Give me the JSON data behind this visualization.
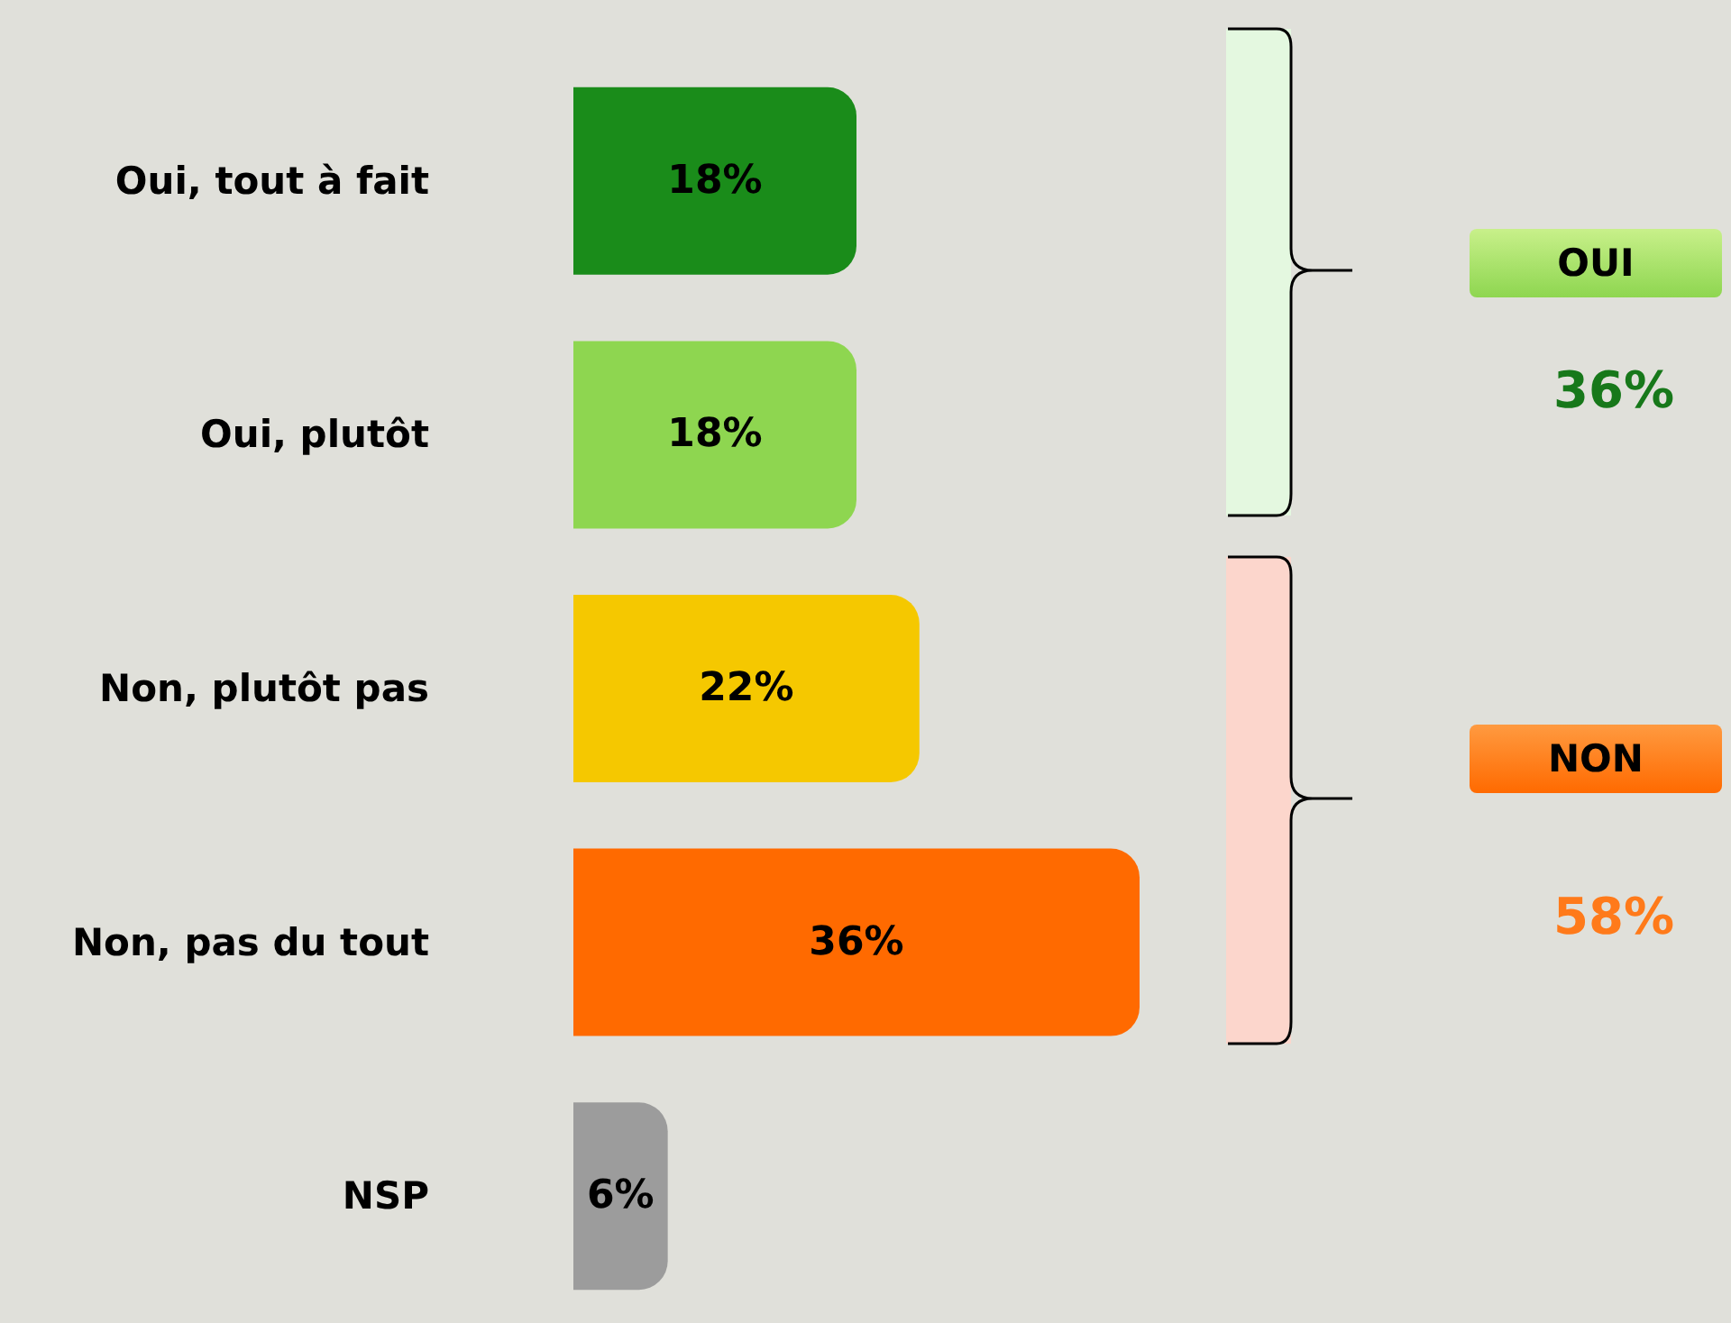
{
  "chart_data": {
    "type": "bar",
    "orientation": "horizontal",
    "categories": [
      "Oui, tout à fait",
      "Oui, plutôt",
      "Non, plutôt pas",
      "Non, pas du tout",
      "NSP"
    ],
    "values": [
      18,
      18,
      22,
      36,
      6
    ],
    "colors": [
      "#1a8c1a",
      "#8ed650",
      "#f5c800",
      "#ff6a00",
      "#9c9c9c"
    ],
    "value_labels": [
      "18%",
      "18%",
      "22%",
      "36%",
      "6%"
    ],
    "tick_labels": "y",
    "annotations": [
      "OUI",
      "36%",
      "NON",
      "58%"
    ]
  }
}
